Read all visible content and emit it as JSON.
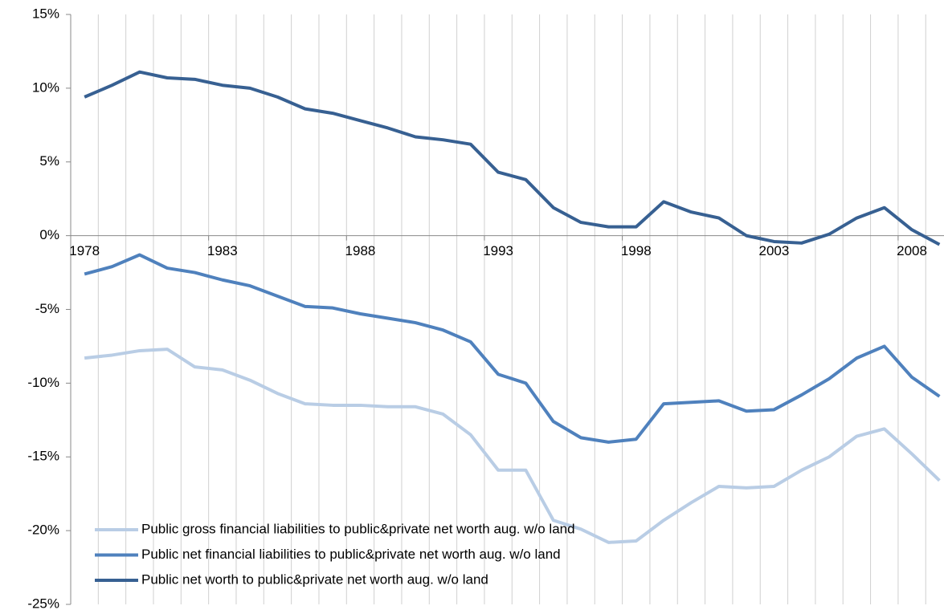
{
  "chart_data": {
    "type": "line",
    "categories": [
      "1978",
      null,
      null,
      null,
      null,
      "1983",
      null,
      null,
      null,
      null,
      "1988",
      null,
      null,
      null,
      null,
      "1993",
      null,
      null,
      null,
      null,
      "1998",
      null,
      null,
      null,
      null,
      "2003",
      null,
      null,
      null,
      null,
      "2008",
      null
    ],
    "series": [
      {
        "name": "Public gross financial liabilities to public&private net worth aug. w/o land",
        "color": "#b9cde5",
        "values": [
          -8.3,
          -8.1,
          -7.8,
          -7.7,
          -8.9,
          -9.1,
          -9.8,
          -10.7,
          -11.4,
          -11.5,
          -11.5,
          -11.6,
          -11.6,
          -12.1,
          -13.5,
          -15.9,
          -15.9,
          -19.3,
          -19.9,
          -20.8,
          -20.7,
          -19.3,
          -18.1,
          -17.0,
          -17.1,
          -17.0,
          -15.9,
          -15.0,
          -13.6,
          -13.1,
          -14.8,
          -16.6
        ]
      },
      {
        "name": "Public net financial liabilities to public&private net worth aug. w/o land",
        "color": "#4f81bd",
        "values": [
          -2.6,
          -2.1,
          -1.3,
          -2.2,
          -2.5,
          -3.0,
          -3.4,
          -4.1,
          -4.8,
          -4.9,
          -5.3,
          -5.6,
          -5.9,
          -6.4,
          -7.2,
          -9.4,
          -10.0,
          -12.6,
          -13.7,
          -14.0,
          -13.8,
          -11.4,
          -11.3,
          -11.2,
          -11.9,
          -11.8,
          -10.8,
          -9.7,
          -8.3,
          -7.5,
          -9.6,
          -10.9
        ]
      },
      {
        "name": "Public net worth to public&private net worth aug. w/o land",
        "color": "#376092",
        "values": [
          9.4,
          10.2,
          11.1,
          10.7,
          10.6,
          10.2,
          10.0,
          9.4,
          8.6,
          8.3,
          7.8,
          7.3,
          6.7,
          6.5,
          6.2,
          4.3,
          3.8,
          1.9,
          0.9,
          0.6,
          0.6,
          2.3,
          1.6,
          1.2,
          0.0,
          -0.4,
          -0.5,
          0.1,
          1.2,
          1.9,
          0.4,
          -0.6
        ]
      }
    ],
    "ylim": [
      -25,
      15
    ],
    "yticks": [
      {
        "value": -25,
        "label": "-25%"
      },
      {
        "value": -20,
        "label": "-20%"
      },
      {
        "value": -15,
        "label": "-15%"
      },
      {
        "value": -10,
        "label": "-10%"
      },
      {
        "value": -5,
        "label": "-5%"
      },
      {
        "value": 0,
        "label": "0%"
      },
      {
        "value": 5,
        "label": "5%"
      },
      {
        "value": 10,
        "label": "10%"
      },
      {
        "value": 15,
        "label": "15%"
      }
    ],
    "grid": true,
    "legend": "lower left"
  }
}
